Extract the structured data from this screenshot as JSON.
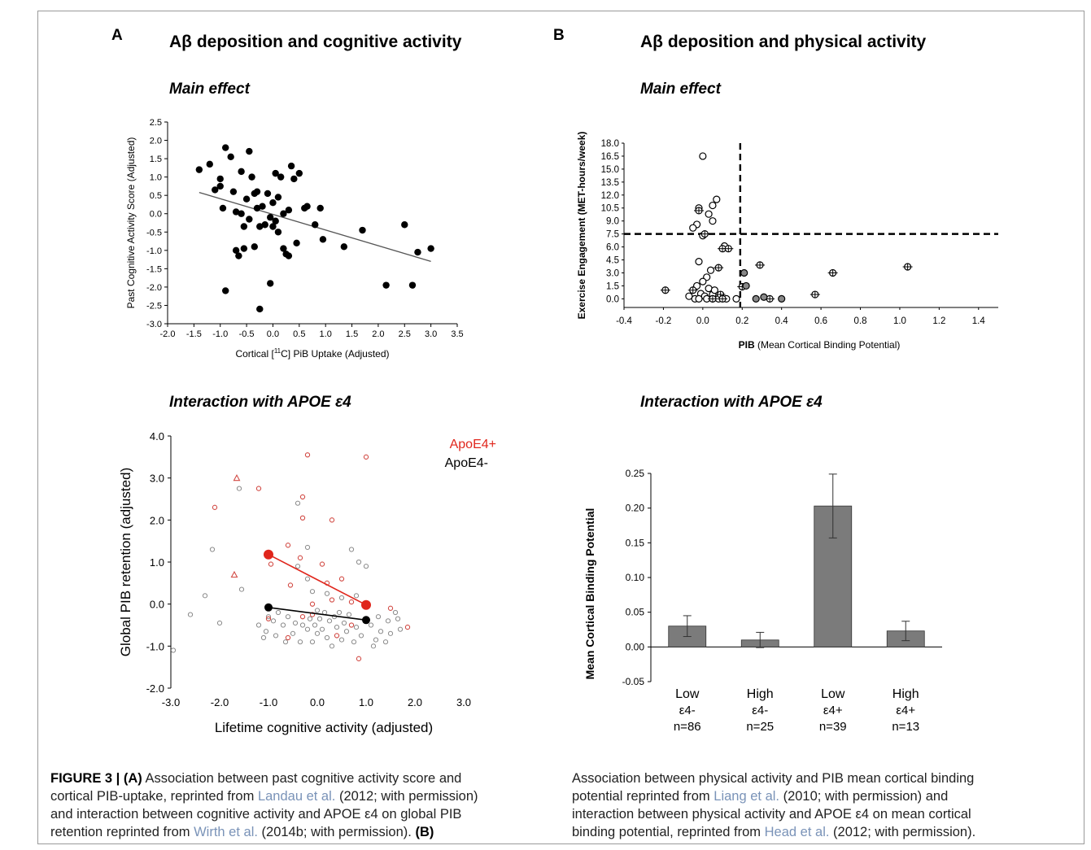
{
  "figure": {
    "panel_a_letter": "A",
    "panel_b_letter": "B",
    "panel_a_title": "Aβ deposition and cognitive activity",
    "panel_b_title": "Aβ deposition and physical activity",
    "sub_main_a": "Main effect",
    "sub_main_b": "Main effect",
    "sub_inter_a": "Interaction with APOE ε4",
    "sub_inter_b": "Interaction with APOE ε4"
  },
  "caption": {
    "label": "FIGURE 3 | (A)",
    "left_1": " Association between past cognitive activity score and",
    "left_2": "cortical PIB-uptake, reprinted from ",
    "ref_landau": "Landau et al.",
    "left_3": " (2012; with permission)",
    "left_4": "and interaction between cognitive activity and APOE ε4 on global PIB",
    "left_5": "retention reprinted from ",
    "ref_wirth": "Wirth et al.",
    "left_6": " (2014b; with permission). ",
    "label_b": "(B)",
    "right_1": "Association between physical activity and PIB mean cortical binding",
    "right_2": "potential reprinted from ",
    "ref_liang": "Liang et al.",
    "right_3": " (2010; with permission) and",
    "right_4": "interaction between physical activity and APOE ε4 on mean cortical",
    "right_5": "binding potential, reprinted from ",
    "ref_head": "Head et al.",
    "right_6": " (2012; with permission)."
  },
  "chart_data": [
    {
      "id": "a_main",
      "type": "scatter",
      "xlabel_pre": "Cortical [",
      "xlabel_sup": "11",
      "xlabel_post": "C] PiB Uptake (Adjusted)",
      "ylabel": "Past Cognitive Activity Score (Adjusted)",
      "xlim": [
        -2.0,
        3.5
      ],
      "ylim": [
        -3.0,
        2.5
      ],
      "xticks": [
        "-2.0",
        "-1.5",
        "-1.0",
        "-0.5",
        "0.0",
        "0.5",
        "1.0",
        "1.5",
        "2.0",
        "2.5",
        "3.0",
        "3.5"
      ],
      "yticks": [
        "-3.0",
        "-2.5",
        "-2.0",
        "-1.5",
        "-1.0",
        "-0.5",
        "0.0",
        "0.5",
        "1.0",
        "1.5",
        "2.0",
        "2.5"
      ],
      "points": [
        [
          -1.4,
          1.2
        ],
        [
          -1.2,
          1.35
        ],
        [
          -1.1,
          0.65
        ],
        [
          -1.0,
          0.95
        ],
        [
          -1.0,
          0.75
        ],
        [
          -0.95,
          0.15
        ],
        [
          -0.9,
          1.8
        ],
        [
          -0.9,
          -2.1
        ],
        [
          -0.8,
          1.55
        ],
        [
          -0.75,
          0.6
        ],
        [
          -0.7,
          0.05
        ],
        [
          -0.7,
          -1.0
        ],
        [
          -0.65,
          -1.15
        ],
        [
          -0.6,
          1.15
        ],
        [
          -0.6,
          0.0
        ],
        [
          -0.55,
          -0.35
        ],
        [
          -0.5,
          0.4
        ],
        [
          -0.45,
          1.7
        ],
        [
          -0.45,
          -0.15
        ],
        [
          -0.4,
          1.0
        ],
        [
          -0.35,
          0.55
        ],
        [
          -0.35,
          -0.9
        ],
        [
          -0.3,
          0.6
        ],
        [
          -0.3,
          0.15
        ],
        [
          -0.25,
          -0.35
        ],
        [
          -0.25,
          -2.6
        ],
        [
          -0.2,
          0.2
        ],
        [
          -0.15,
          -0.3
        ],
        [
          -0.1,
          0.55
        ],
        [
          -0.05,
          -0.1
        ],
        [
          0.0,
          0.3
        ],
        [
          0.0,
          -0.35
        ],
        [
          0.05,
          1.1
        ],
        [
          0.05,
          -0.2
        ],
        [
          -0.05,
          -1.9
        ],
        [
          0.1,
          0.45
        ],
        [
          0.1,
          -0.5
        ],
        [
          0.15,
          1.0
        ],
        [
          0.2,
          0.0
        ],
        [
          0.2,
          -0.95
        ],
        [
          0.25,
          -1.1
        ],
        [
          0.3,
          0.1
        ],
        [
          0.35,
          1.3
        ],
        [
          0.4,
          0.95
        ],
        [
          0.45,
          -0.8
        ],
        [
          0.5,
          1.1
        ],
        [
          0.6,
          0.15
        ],
        [
          0.8,
          -0.3
        ],
        [
          0.9,
          0.15
        ],
        [
          0.95,
          -0.7
        ],
        [
          1.35,
          -0.9
        ],
        [
          1.7,
          -0.45
        ],
        [
          2.15,
          -1.95
        ],
        [
          2.5,
          -0.3
        ],
        [
          2.65,
          -1.95
        ],
        [
          2.75,
          -1.05
        ],
        [
          3.0,
          -0.95
        ],
        [
          0.3,
          -1.15
        ],
        [
          -0.55,
          -0.95
        ],
        [
          0.65,
          0.2
        ]
      ],
      "fit": [
        [
          -1.4,
          0.58
        ],
        [
          3.0,
          -1.3
        ]
      ]
    },
    {
      "id": "b_main",
      "type": "scatter",
      "xlabel_bold": "PIB",
      "xlabel_rest": " (Mean Cortical Binding Potential)",
      "ylabel": "Exercise Engagement (MET-hours/week)",
      "xlim": [
        -0.4,
        1.5
      ],
      "ylim": [
        -1.0,
        18.0
      ],
      "xticks": [
        -0.4,
        -0.2,
        0.0,
        0.2,
        0.4,
        0.6,
        0.8,
        1.0,
        1.2,
        1.4
      ],
      "xtick_labels": [
        "-0.4",
        "-0.2",
        "0.0",
        "0.2",
        "0.4",
        "0.6",
        "0.8",
        "1.0",
        "1.2",
        "1.4"
      ],
      "yticks": [
        0,
        1.5,
        3.0,
        4.5,
        6.0,
        7.5,
        9.0,
        10.5,
        12.0,
        13.5,
        15.0,
        16.5,
        18.0
      ],
      "ytick_labels": [
        "0.0",
        "1.5",
        "3.0",
        "4.5",
        "6.0",
        "7.5",
        "9.0",
        "10.5",
        "12.0",
        "13.5",
        "15.0",
        "16.5",
        "18.0"
      ],
      "vline": 0.19,
      "hline": 7.5,
      "open": [
        [
          0.0,
          16.5
        ],
        [
          0.07,
          11.5
        ],
        [
          0.05,
          10.8
        ],
        [
          -0.02,
          10.5
        ],
        [
          0.03,
          9.8
        ],
        [
          0.05,
          9.0
        ],
        [
          -0.03,
          8.6
        ],
        [
          -0.05,
          8.2
        ],
        [
          0.0,
          7.3
        ],
        [
          -0.02,
          4.3
        ],
        [
          0.04,
          3.3
        ],
        [
          0.02,
          2.5
        ],
        [
          0.0,
          2.0
        ],
        [
          -0.03,
          1.5
        ],
        [
          0.03,
          1.2
        ],
        [
          -0.01,
          0.6
        ],
        [
          0.05,
          0.5
        ],
        [
          0.01,
          0.3
        ],
        [
          -0.04,
          0.0
        ],
        [
          -0.02,
          0.0
        ],
        [
          0.02,
          0.0
        ],
        [
          0.05,
          0.0
        ],
        [
          0.08,
          0.0
        ],
        [
          0.12,
          0.0
        ],
        [
          0.17,
          0.0
        ],
        [
          0.11,
          6.1
        ],
        [
          0.06,
          1.0
        ],
        [
          -0.07,
          0.3
        ]
      ],
      "crossed": [
        [
          -0.02,
          10.2
        ],
        [
          0.01,
          7.5
        ],
        [
          0.08,
          3.6
        ],
        [
          0.1,
          5.8
        ],
        [
          0.13,
          5.8
        ],
        [
          -0.05,
          1.0
        ],
        [
          -0.19,
          1.0
        ],
        [
          0.09,
          0.5
        ],
        [
          0.1,
          0.0
        ],
        [
          0.2,
          1.4
        ],
        [
          0.29,
          3.9
        ],
        [
          0.34,
          0.0
        ],
        [
          0.57,
          0.5
        ],
        [
          0.66,
          3.0
        ],
        [
          1.04,
          3.7
        ],
        [
          0.05,
          0.0
        ]
      ],
      "filled": [
        [
          0.21,
          3.0
        ],
        [
          0.22,
          1.5
        ],
        [
          0.27,
          0.0
        ],
        [
          0.31,
          0.2
        ],
        [
          0.4,
          0.0
        ]
      ]
    },
    {
      "id": "a_inter",
      "type": "scatter",
      "xlabel": "Lifetime cognitive activity (adjusted)",
      "ylabel": "Global PIB retention (adjusted)",
      "xlim": [
        -3.0,
        3.0
      ],
      "ylim": [
        -2.0,
        4.0
      ],
      "xticks": [
        -3,
        -2,
        -1,
        0,
        1,
        2,
        3
      ],
      "xtick_labels": [
        "-3.0",
        "-2.0",
        "-1.0",
        "0.0",
        "1.0",
        "2.0",
        "3.0"
      ],
      "yticks": [
        -2,
        -1,
        0,
        1,
        2,
        3,
        4
      ],
      "ytick_labels": [
        "-2.0",
        "-1.0",
        "0.0",
        "1.0",
        "2.0",
        "3.0",
        "4.0"
      ],
      "legend": [
        {
          "name": "ApoE4+",
          "color": "#e0261c"
        },
        {
          "name": "ApoE4-",
          "color": "#000000"
        }
      ],
      "colors": {
        "pos": "#d24a44",
        "neg": "#8a8a8a",
        "line_pos": "#e0261c",
        "line_neg": "#000000"
      },
      "pos_points": [
        [
          -2.1,
          2.3
        ],
        [
          -1.2,
          2.75
        ],
        [
          -0.2,
          3.55
        ],
        [
          1.0,
          3.5
        ],
        [
          -0.3,
          2.55
        ],
        [
          -0.3,
          2.05
        ],
        [
          0.3,
          2.0
        ],
        [
          -0.6,
          1.4
        ],
        [
          -0.35,
          1.1
        ],
        [
          -0.95,
          0.95
        ],
        [
          0.1,
          0.95
        ],
        [
          0.5,
          0.6
        ],
        [
          -0.55,
          0.45
        ],
        [
          0.2,
          0.5
        ],
        [
          -0.1,
          0.0
        ],
        [
          0.3,
          0.1
        ],
        [
          -0.3,
          -0.3
        ],
        [
          0.7,
          0.05
        ],
        [
          -0.6,
          -0.8
        ],
        [
          0.85,
          -1.3
        ],
        [
          1.5,
          -0.1
        ],
        [
          1.85,
          -0.55
        ],
        [
          0.4,
          -0.75
        ],
        [
          -0.1,
          -0.25
        ],
        [
          0.7,
          -0.5
        ],
        [
          -1.0,
          -0.35
        ]
      ],
      "pos_tri": [
        [
          -1.65,
          3.0
        ],
        [
          -1.7,
          0.7
        ]
      ],
      "neg_points": [
        [
          -2.95,
          -1.1
        ],
        [
          -2.6,
          -0.25
        ],
        [
          -2.0,
          -0.45
        ],
        [
          -2.15,
          1.3
        ],
        [
          -2.3,
          0.2
        ],
        [
          -1.6,
          2.75
        ],
        [
          -1.55,
          0.35
        ],
        [
          -1.0,
          -0.3
        ],
        [
          -0.4,
          2.4
        ],
        [
          -0.2,
          1.35
        ],
        [
          0.7,
          1.3
        ],
        [
          0.85,
          1.0
        ],
        [
          1.0,
          0.9
        ],
        [
          -0.4,
          0.9
        ],
        [
          -0.2,
          0.6
        ],
        [
          -0.1,
          0.3
        ],
        [
          0.2,
          0.25
        ],
        [
          0.5,
          0.15
        ],
        [
          0.8,
          0.2
        ],
        [
          -1.2,
          -0.5
        ],
        [
          -1.1,
          -0.8
        ],
        [
          -1.05,
          -0.65
        ],
        [
          -0.9,
          -0.4
        ],
        [
          -0.85,
          -0.75
        ],
        [
          -0.8,
          -0.2
        ],
        [
          -0.7,
          -0.5
        ],
        [
          -0.6,
          -0.3
        ],
        [
          -0.5,
          -0.7
        ],
        [
          -0.45,
          -0.45
        ],
        [
          -0.35,
          -0.9
        ],
        [
          -0.3,
          -0.5
        ],
        [
          -0.2,
          -0.6
        ],
        [
          -0.1,
          -0.9
        ],
        [
          -0.05,
          -0.5
        ],
        [
          0.0,
          -0.7
        ],
        [
          0.05,
          -0.35
        ],
        [
          0.1,
          -0.6
        ],
        [
          0.15,
          -0.2
        ],
        [
          0.2,
          -0.8
        ],
        [
          0.25,
          -0.4
        ],
        [
          0.3,
          -1.0
        ],
        [
          0.35,
          -0.3
        ],
        [
          0.4,
          -0.55
        ],
        [
          0.45,
          -0.2
        ],
        [
          0.5,
          -0.85
        ],
        [
          0.55,
          -0.45
        ],
        [
          0.6,
          -0.65
        ],
        [
          0.65,
          -0.25
        ],
        [
          0.75,
          -0.9
        ],
        [
          0.8,
          -0.55
        ],
        [
          0.9,
          -0.75
        ],
        [
          1.1,
          -0.5
        ],
        [
          1.2,
          -0.85
        ],
        [
          1.25,
          -0.3
        ],
        [
          1.3,
          -0.65
        ],
        [
          1.4,
          -0.9
        ],
        [
          1.45,
          -0.4
        ],
        [
          1.5,
          -0.7
        ],
        [
          1.6,
          -0.2
        ],
        [
          1.65,
          -0.35
        ],
        [
          1.7,
          -0.6
        ],
        [
          -1.0,
          -0.1
        ],
        [
          0.0,
          -0.15
        ],
        [
          -0.65,
          -0.9
        ],
        [
          1.15,
          -1.0
        ],
        [
          -0.15,
          -0.35
        ]
      ],
      "line_pos": [
        [
          -1.0,
          1.18
        ],
        [
          1.0,
          -0.02
        ]
      ],
      "line_neg": [
        [
          -1.0,
          -0.08
        ],
        [
          1.0,
          -0.38
        ]
      ]
    },
    {
      "id": "b_inter",
      "type": "bar",
      "ylabel": "Mean Cortical Binding Potential",
      "ylim": [
        -0.05,
        0.25
      ],
      "yticks": [
        -0.05,
        0.0,
        0.05,
        0.1,
        0.15,
        0.2,
        0.25
      ],
      "ytick_labels": [
        "-0.05",
        "0.00",
        "0.05",
        "0.10",
        "0.15",
        "0.20",
        "0.25"
      ],
      "bar_color": "#7b7b7b",
      "categories": [
        {
          "line1": "Low",
          "line2": "ε4-",
          "line3": "n=86"
        },
        {
          "line1": "High",
          "line2": "ε4-",
          "line3": "n=25"
        },
        {
          "line1": "Low",
          "line2": "ε4+",
          "line3": "n=39"
        },
        {
          "line1": "High",
          "line2": "ε4+",
          "line3": "n=13"
        }
      ],
      "values": [
        0.03,
        0.01,
        0.203,
        0.023
      ],
      "errors": [
        0.015,
        0.011,
        0.046,
        0.014
      ]
    }
  ]
}
